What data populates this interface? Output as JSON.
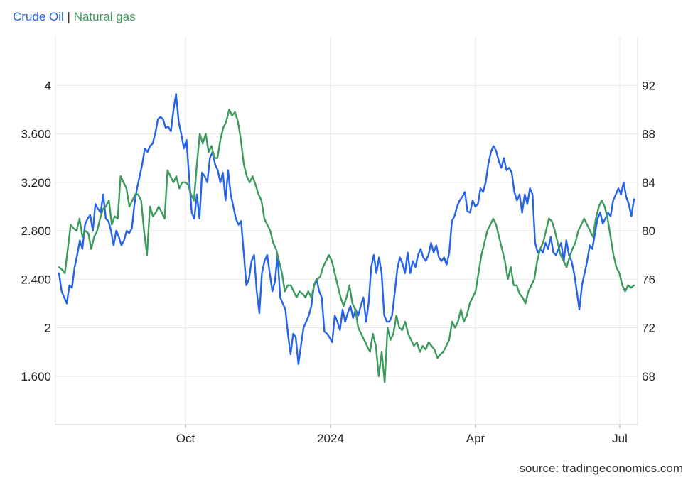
{
  "chart_data": {
    "type": "line",
    "legend": {
      "placement": "top-left",
      "separator": "|"
    },
    "x_ticks": [
      "Oct",
      "2024",
      "Apr",
      "Jul"
    ],
    "y_left": {
      "ticks": [
        "1.600",
        "2",
        "2.400",
        "2.800",
        "3.200",
        "3.600",
        "4"
      ],
      "range": [
        1.2,
        4.4
      ]
    },
    "y_right": {
      "ticks": [
        "68",
        "72",
        "76",
        "80",
        "84",
        "88",
        "92"
      ],
      "range": [
        64,
        96
      ]
    },
    "grid": true,
    "series": [
      {
        "name": "Crude Oil",
        "axis": "left",
        "color": "#2563eb",
        "values": [
          2.45,
          2.3,
          2.25,
          2.2,
          2.35,
          2.33,
          2.5,
          2.6,
          2.72,
          2.65,
          2.85,
          2.9,
          2.93,
          2.8,
          3.02,
          2.98,
          2.95,
          3.1,
          2.9,
          2.88,
          2.8,
          2.68,
          2.8,
          2.75,
          2.68,
          2.72,
          2.8,
          2.78,
          2.82,
          3.02,
          3.15,
          3.25,
          3.35,
          3.48,
          3.45,
          3.5,
          3.52,
          3.6,
          3.72,
          3.74,
          3.72,
          3.65,
          3.66,
          3.62,
          3.8,
          3.93,
          3.7,
          3.6,
          3.48,
          3.55,
          3.25,
          2.95,
          2.9,
          3.1,
          2.9,
          3.28,
          3.25,
          3.2,
          3.4,
          3.45,
          3.35,
          3.3,
          3.2,
          3.28,
          3.05,
          3.3,
          3.1,
          3.0,
          2.9,
          2.85,
          2.88,
          2.62,
          2.35,
          2.4,
          2.55,
          2.6,
          2.3,
          2.12,
          2.45,
          2.55,
          2.6,
          2.45,
          2.3,
          2.38,
          2.6,
          2.25,
          2.2,
          2.15,
          1.95,
          1.78,
          1.95,
          1.92,
          1.7,
          1.85,
          2.0,
          2.05,
          2.1,
          2.18,
          2.35,
          2.4,
          2.3,
          2.25,
          1.97,
          1.95,
          1.92,
          1.88,
          2.1,
          2.05,
          1.98,
          2.15,
          2.05,
          2.12,
          2.18,
          2.08,
          2.15,
          2.1,
          2.18,
          2.25,
          2.05,
          2.2,
          2.5,
          2.6,
          2.45,
          2.58,
          2.45,
          2.1,
          2.05,
          2.05,
          2.1,
          2.28,
          2.48,
          2.58,
          2.53,
          2.45,
          2.62,
          2.45,
          2.55,
          2.5,
          2.6,
          2.65,
          2.58,
          2.55,
          2.6,
          2.7,
          2.62,
          2.68,
          2.58,
          2.55,
          2.58,
          2.52,
          2.62,
          2.88,
          2.92,
          3.0,
          3.05,
          3.08,
          3.12,
          2.96,
          2.95,
          3.05,
          3.0,
          3.02,
          3.15,
          3.12,
          3.2,
          3.35,
          3.45,
          3.5,
          3.46,
          3.38,
          3.32,
          3.4,
          3.3,
          3.32,
          3.28,
          3.12,
          3.05,
          3.1,
          2.95,
          3.1,
          3.02,
          3.15,
          3.1,
          2.7,
          2.62,
          2.65,
          2.62,
          2.7,
          2.65,
          2.75,
          2.62,
          2.6,
          2.65,
          2.7,
          2.55,
          2.72,
          2.6,
          2.55,
          2.45,
          2.3,
          2.15,
          2.35,
          2.45,
          2.55,
          2.68,
          2.65,
          2.78,
          2.9,
          2.95,
          2.86,
          2.9,
          2.95,
          2.92,
          3.05,
          3.1,
          3.15,
          3.1,
          3.2,
          3.08,
          3.02,
          2.92,
          3.06
        ]
      },
      {
        "name": "Natural gas",
        "axis": "right",
        "color": "#3d9a5d",
        "values": [
          77.0,
          76.8,
          76.5,
          78.5,
          80.5,
          80.2,
          80.0,
          81.0,
          79.5,
          80.0,
          79.8,
          78.5,
          79.5,
          80.0,
          81.0,
          81.8,
          82.0,
          82.5,
          80.5,
          81.2,
          81.0,
          84.5,
          84.0,
          83.5,
          82.0,
          82.5,
          83.0,
          83.0,
          82.5,
          80.0,
          78.0,
          82.0,
          81.2,
          81.5,
          82.0,
          81.5,
          81.0,
          85.0,
          84.5,
          84.0,
          84.5,
          83.5,
          84.0,
          84.0,
          83.8,
          83.0,
          82.5,
          85.5,
          88.0,
          87.2,
          88.0,
          86.5,
          87.0,
          86.0,
          86.0,
          87.5,
          88.5,
          89.0,
          90.0,
          89.5,
          89.8,
          89.0,
          87.5,
          85.5,
          84.5,
          84.0,
          84.5,
          83.8,
          83.0,
          82.5,
          81.0,
          80.5,
          80.0,
          79.0,
          78.5,
          77.5,
          76.5,
          75.0,
          75.5,
          75.5,
          75.0,
          74.5,
          75.0,
          74.8,
          74.5,
          75.0,
          74.5,
          75.5,
          76.0,
          76.2,
          77.0,
          77.5,
          78.0,
          77.5,
          76.5,
          75.5,
          74.5,
          73.8,
          74.5,
          75.5,
          74.0,
          73.5,
          72.0,
          71.5,
          71.0,
          70.5,
          70.0,
          71.5,
          70.5,
          68.0,
          70.0,
          67.5,
          72.0,
          71.0,
          71.5,
          73.0,
          72.0,
          71.8,
          72.5,
          71.5,
          71.0,
          70.5,
          70.8,
          70.0,
          70.5,
          70.2,
          70.8,
          70.5,
          70.2,
          69.5,
          69.8,
          70.0,
          70.5,
          71.0,
          72.5,
          72.0,
          72.5,
          73.5,
          72.5,
          73.0,
          74.0,
          74.5,
          75.0,
          76.5,
          78.0,
          79.0,
          80.0,
          80.5,
          81.0,
          80.5,
          79.5,
          78.5,
          77.5,
          76.0,
          77.0,
          75.5,
          75.5,
          74.8,
          74.5,
          74.0,
          75.0,
          75.5,
          76.0,
          77.5,
          78.5,
          79.0,
          80.0,
          81.0,
          80.8,
          80.0,
          79.0,
          78.0,
          77.5,
          77.0,
          77.8,
          78.5,
          79.0,
          80.0,
          80.5,
          81.0,
          80.5,
          80.0,
          79.5,
          81.0,
          82.0,
          82.5,
          82.0,
          81.0,
          79.5,
          78.0,
          77.0,
          76.5,
          75.5,
          75.0,
          75.5,
          75.3,
          75.5
        ]
      }
    ]
  },
  "legend_text": {
    "crude": "Crude Oil",
    "separator": "|",
    "gas": "Natural gas"
  },
  "source_text": "source: tradingeconomics.com"
}
